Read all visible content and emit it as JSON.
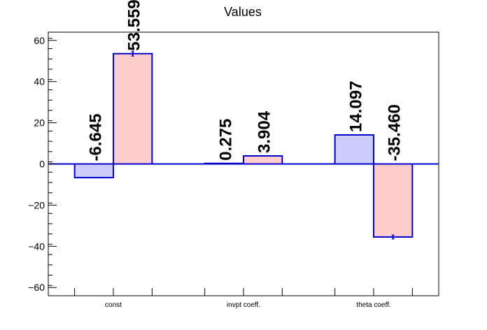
{
  "chart_data": {
    "type": "bar",
    "title": "Values",
    "categories": [
      "const",
      "invpt coeff.",
      "theta coeff."
    ],
    "series": [
      {
        "values": [
          -6.645,
          0.275,
          14.097
        ],
        "labels": [
          "-6.645",
          "0.275",
          "14.097"
        ],
        "errors": [
          0,
          0,
          0
        ],
        "fill": "#ccccff",
        "stroke": "#0000cc"
      },
      {
        "values": [
          53.559,
          3.904,
          -35.46
        ],
        "labels": [
          "53.559",
          "3.904",
          "-35.460"
        ],
        "errors": [
          1.2,
          0,
          1.0
        ],
        "fill": "#ffcccc",
        "stroke": "#0000cc"
      }
    ],
    "ylim": [
      -64,
      64
    ],
    "y_ticks": [
      -60,
      -40,
      -20,
      0,
      20,
      40,
      60
    ],
    "y_tick_labels": [
      "−60",
      "−40",
      "−20",
      "0",
      "20",
      "40",
      "60"
    ],
    "baseline": 0,
    "grid": false,
    "legend": "none"
  },
  "colors": {
    "axis": "#000000",
    "zero_line": "#0000cc"
  }
}
